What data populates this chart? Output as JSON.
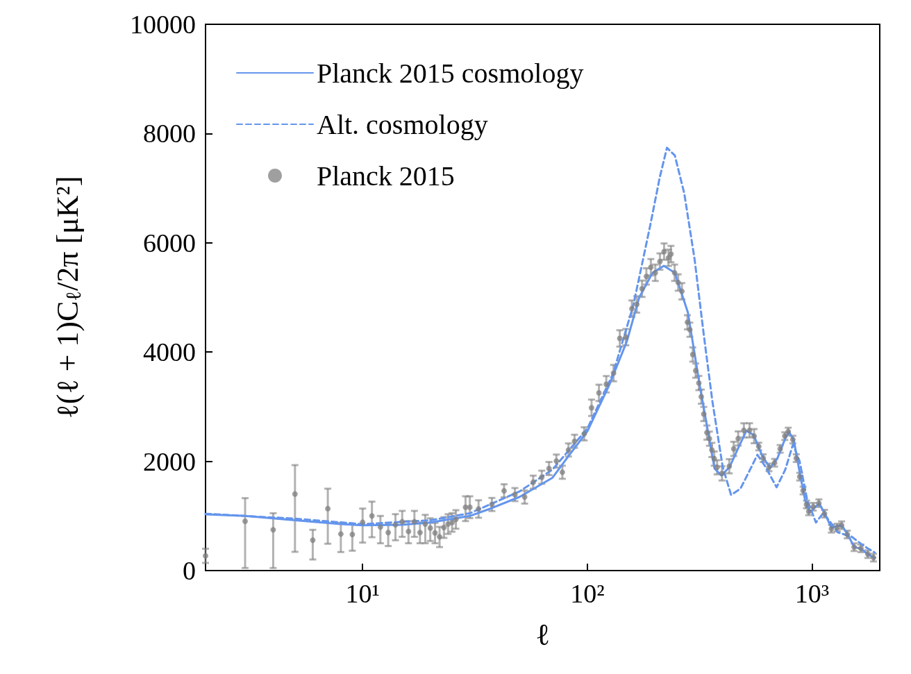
{
  "chart_data": {
    "type": "line",
    "xlabel": "ℓ",
    "ylabel": "ℓ(ℓ + 1)C$_{ℓ}$/2π [μK²]",
    "log": "x",
    "grid": false,
    "legend": "top left",
    "xlim": [
      2,
      2000
    ],
    "xticks": [
      {
        "value": 10,
        "label": "10¹"
      },
      {
        "value": 100,
        "label": "10²"
      },
      {
        "value": 1000,
        "label": "10³"
      }
    ],
    "ylim": [
      0,
      10000
    ],
    "yticks": [
      0,
      2000,
      4000,
      6000,
      8000,
      10000
    ],
    "series": [
      {
        "name": "Planck 2015 cosmology",
        "line_style": "solid",
        "marker": "none",
        "color": "#6495ed",
        "x": [
          2,
          3,
          5,
          8,
          10,
          15,
          20,
          30,
          37.6,
          50,
          70,
          82.4,
          100,
          125.6,
          150,
          170,
          195,
          219,
          245,
          280,
          317,
          368,
          395,
          430,
          470,
          510,
          550,
          600,
          650,
          700,
          760,
          790,
          830,
          880,
          930,
          975,
          1020,
          1075,
          1140,
          1220,
          1300,
          1360,
          1440,
          1540,
          1650,
          1770,
          1900
        ],
        "values": [
          1030,
          1000,
          920,
          850,
          830,
          840,
          880,
          1000,
          1144,
          1350,
          1700,
          2096,
          2550,
          3411,
          4200,
          4997,
          5450,
          5578,
          5450,
          4727,
          3367,
          1868,
          1740,
          1900,
          2250,
          2560,
          2480,
          2100,
          1880,
          2050,
          2420,
          2540,
          2380,
          1800,
          1300,
          1070,
          1140,
          1230,
          1040,
          780,
          820,
          820,
          660,
          430,
          400,
          300,
          230
        ]
      },
      {
        "name": "Alt. cosmology",
        "type": "line",
        "line_style": "dashed",
        "marker": "none",
        "color": "#6495ed",
        "x": [
          2,
          5,
          10,
          20,
          30,
          50,
          70,
          100,
          130,
          160,
          190,
          210,
          226,
          245,
          270,
          300,
          330,
          360,
          400,
          436,
          480,
          530,
          571,
          620,
          695,
          760,
          822,
          880,
          950,
          1040,
          1120,
          1200,
          1300,
          1500,
          1700,
          1900
        ],
        "values": [
          1040,
          950,
          850,
          920,
          1050,
          1450,
          1850,
          2600,
          3600,
          4850,
          6300,
          7200,
          7740,
          7600,
          6900,
          5700,
          4300,
          3100,
          1900,
          1385,
          1500,
          1850,
          2120,
          1900,
          1525,
          1850,
          2310,
          2000,
          1300,
          880,
          1050,
          900,
          700,
          620,
          450,
          330
        ]
      },
      {
        "name": "Planck 2015",
        "type": "scatter",
        "marker": "circle",
        "color": "#7f7f7f",
        "x": [
          2,
          3,
          4,
          5,
          6,
          7,
          8,
          9,
          10,
          11,
          12,
          13,
          14,
          15,
          16,
          17,
          18,
          19,
          20,
          21,
          22,
          23,
          24,
          25,
          26,
          28.7,
          30,
          32.8,
          37.6,
          42.6,
          47.6,
          52.6,
          57.4,
          62.7,
          67.5,
          72.8,
          77.4,
          82.4,
          87.7,
          96.8,
          104.4,
          112.6,
          121.4,
          130.8,
          139.4,
          148.3,
          157.8,
          165.9,
          175.1,
          183.1,
          191.7,
          200.6,
          210.3,
          219.5,
          229.6,
          235.5,
          244.5,
          253.6,
          263.4,
          278.8,
          285.8,
          294.4,
          303.4,
          313.4,
          321.3,
          329.6,
          340.4,
          349.2,
          358.2,
          366.8,
          377.8,
          397.2,
          428,
          448,
          469,
          497,
          527,
          552,
          579,
          606,
          643,
          681,
          721,
          756,
          783,
          821,
          850,
          881,
          912,
          944,
          966,
          1012,
          1072,
          1136,
          1219,
          1292,
          1353,
          1435,
          1538,
          1649,
          1770,
          1876
        ],
        "values": [
          271,
          902,
          746,
          1402,
          555,
          1135,
          669,
          661,
          885,
          1000,
          796,
          695,
          839,
          894,
          716,
          894,
          695,
          851,
          779,
          690,
          618,
          788,
          851,
          881,
          936,
          1160,
          1160,
          1127,
          1210,
          1460,
          1391,
          1346,
          1618,
          1709,
          1868,
          2004,
          1800,
          2208,
          2367,
          2503,
          2980,
          3253,
          3411,
          3615,
          4250,
          4273,
          4795,
          4872,
          5159,
          5385,
          5553,
          5452,
          5657,
          5839,
          5725,
          5794,
          5452,
          5273,
          5113,
          4545,
          4409,
          3955,
          3660,
          3433,
          3184,
          2866,
          2526,
          2414,
          2208,
          2050,
          1891,
          1779,
          1910,
          2228,
          2418,
          2567,
          2567,
          2461,
          2271,
          2058,
          1889,
          1974,
          2228,
          2461,
          2545,
          2398,
          2058,
          1719,
          1465,
          1211,
          1084,
          1169,
          1233,
          1042,
          766,
          788,
          830,
          661,
          428,
          407,
          301,
          237
        ],
        "errors": [
          [
            140,
            400
          ],
          [
            47,
            1326
          ],
          [
            47,
            1050
          ],
          [
            343,
            1931
          ],
          [
            203,
            746
          ],
          [
            491,
            1499
          ],
          [
            339,
            873
          ],
          [
            364,
            851
          ],
          [
            512,
            1135
          ],
          [
            610,
            1262
          ],
          [
            500,
            1000
          ],
          [
            449,
            873
          ],
          [
            555,
            1033
          ],
          [
            618,
            1093
          ],
          [
            500,
            906
          ],
          [
            618,
            1093
          ],
          [
            500,
            881
          ],
          [
            500,
            1020
          ],
          [
            542,
            957
          ],
          [
            500,
            873
          ],
          [
            430,
            800
          ],
          190,
          180,
          170,
          170,
          [
            906,
            1360
          ],
          200,
          160,
          120,
          120,
          120,
          120,
          120,
          120,
          120,
          120,
          120,
          120,
          120,
          120,
          150,
          150,
          150,
          150,
          150,
          150,
          150,
          150,
          150,
          150,
          150,
          150,
          150,
          150,
          150,
          150,
          150,
          150,
          150,
          130,
          130,
          130,
          130,
          130,
          130,
          130,
          130,
          130,
          130,
          130,
          130,
          130,
          130,
          130,
          130,
          130,
          130,
          130,
          70,
          70,
          70,
          70,
          70,
          70,
          70,
          70,
          70,
          70,
          70,
          70,
          70,
          70,
          70,
          70,
          70,
          70,
          70,
          70,
          70,
          70,
          70,
          70
        ]
      }
    ]
  }
}
